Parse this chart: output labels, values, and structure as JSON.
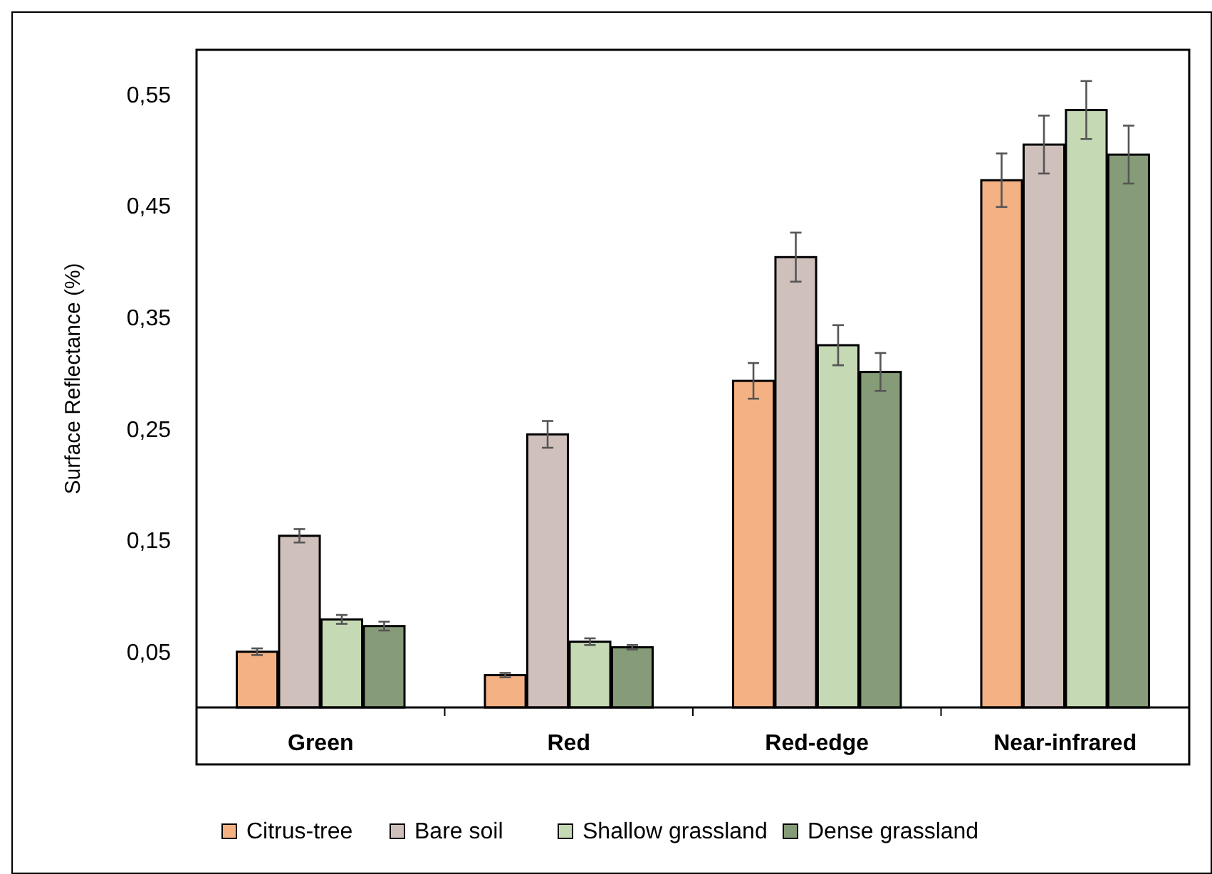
{
  "chart_data": {
    "type": "bar",
    "ylabel": "Surface Reflectance (%)",
    "categories": [
      "Green",
      "Red",
      "Red-edge",
      "Near-infrared"
    ],
    "series": [
      {
        "name": "Citrus-tree",
        "color": "#f4b183",
        "values": [
          0.05,
          0.029,
          0.293,
          0.473
        ],
        "errors": [
          0.003,
          0.002,
          0.016,
          0.024
        ]
      },
      {
        "name": "Bare soil",
        "color": "#d0c0bc",
        "values": [
          0.154,
          0.245,
          0.404,
          0.505
        ],
        "errors": [
          0.006,
          0.012,
          0.022,
          0.026
        ]
      },
      {
        "name": "Shallow grassland",
        "color": "#c5d9b5",
        "values": [
          0.079,
          0.059,
          0.325,
          0.536
        ],
        "errors": [
          0.004,
          0.003,
          0.018,
          0.026
        ]
      },
      {
        "name": "Dense grassland",
        "color": "#869c78",
        "values": [
          0.073,
          0.054,
          0.301,
          0.496
        ],
        "errors": [
          0.004,
          0.002,
          0.017,
          0.026
        ]
      }
    ],
    "ylim": [
      0,
      0.59
    ],
    "yticks": [
      {
        "value": 0.05,
        "label": "0,05"
      },
      {
        "value": 0.15,
        "label": "0,15"
      },
      {
        "value": 0.25,
        "label": "0,25"
      },
      {
        "value": 0.35,
        "label": "0,35"
      },
      {
        "value": 0.45,
        "label": "0,45"
      },
      {
        "value": 0.55,
        "label": "0,55"
      }
    ],
    "grid": false,
    "legend": "bottom"
  }
}
